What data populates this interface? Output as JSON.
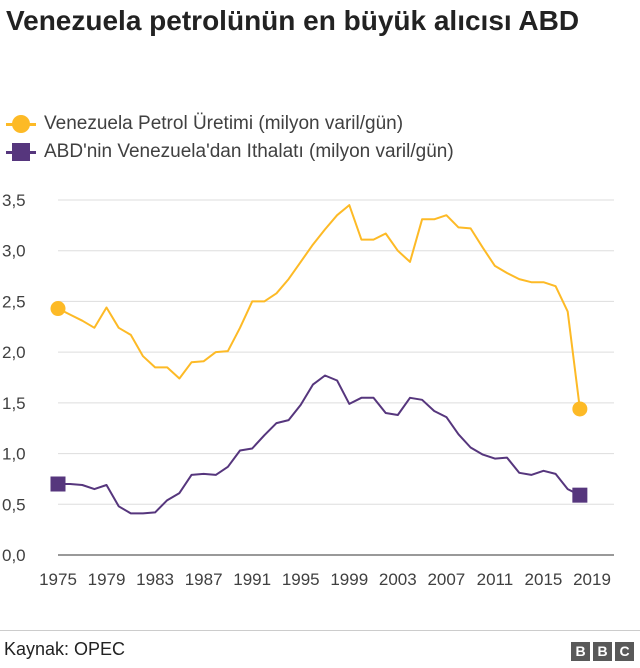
{
  "title": "Venezuela petrolünün en büyük alıcısı ABD",
  "legend": [
    {
      "label": "Venezuela Petrol Üretimi (milyon varil/gün)",
      "color": "#FDBA26",
      "marker": "circle"
    },
    {
      "label": "ABD'nin Venezuela'dan Ithalatı (milyon varil/gün)",
      "color": "#56367D",
      "marker": "square"
    }
  ],
  "chart_data": {
    "type": "line",
    "ylim": [
      0,
      3.5
    ],
    "yticks": [
      0.0,
      0.5,
      1.0,
      1.5,
      2.0,
      2.5,
      3.0,
      3.5
    ],
    "ytick_labels": [
      "0,0",
      "0,5",
      "1,0",
      "1,5",
      "2,0",
      "2,5",
      "3,0",
      "3,5"
    ],
    "xlim": [
      1975,
      2019
    ],
    "xtick_labels": [
      "1975",
      "1979",
      "1983",
      "1987",
      "1991",
      "1995",
      "1999",
      "2003",
      "2007",
      "2011",
      "2015",
      "2019"
    ],
    "grid": true,
    "legend_position": "top-left",
    "x": [
      1975,
      1976,
      1977,
      1978,
      1979,
      1980,
      1981,
      1982,
      1983,
      1984,
      1985,
      1986,
      1987,
      1988,
      1989,
      1990,
      1991,
      1992,
      1993,
      1994,
      1995,
      1996,
      1997,
      1998,
      1999,
      2000,
      2001,
      2002,
      2003,
      2004,
      2005,
      2006,
      2007,
      2008,
      2009,
      2010,
      2011,
      2012,
      2013,
      2014,
      2015,
      2016,
      2017,
      2018
    ],
    "series": [
      {
        "name": "Venezuela Petrol Üretimi (milyon varil/gün)",
        "color": "#FDBA26",
        "values": [
          2.43,
          2.37,
          2.31,
          2.24,
          2.44,
          2.24,
          2.17,
          1.96,
          1.85,
          1.85,
          1.74,
          1.9,
          1.91,
          2.0,
          2.01,
          2.24,
          2.5,
          2.5,
          2.58,
          2.72,
          2.89,
          3.06,
          3.21,
          3.35,
          3.45,
          3.11,
          3.11,
          3.17,
          3.0,
          2.89,
          3.31,
          3.31,
          3.35,
          3.23,
          3.22,
          3.03,
          2.85,
          2.78,
          2.72,
          2.69,
          2.69,
          2.65,
          2.4,
          1.44
        ]
      },
      {
        "name": "ABD'nin Venezuela'dan Ithalatı (milyon varil/gün)",
        "color": "#56367D",
        "values": [
          0.7,
          0.7,
          0.69,
          0.65,
          0.69,
          0.48,
          0.41,
          0.41,
          0.42,
          0.54,
          0.61,
          0.79,
          0.8,
          0.79,
          0.87,
          1.03,
          1.05,
          1.18,
          1.3,
          1.33,
          1.48,
          1.68,
          1.77,
          1.72,
          1.49,
          1.55,
          1.55,
          1.4,
          1.38,
          1.55,
          1.53,
          1.42,
          1.36,
          1.19,
          1.06,
          0.99,
          0.95,
          0.96,
          0.81,
          0.79,
          0.83,
          0.8,
          0.65,
          0.59
        ]
      }
    ]
  },
  "footer": {
    "source": "Kaynak: OPEC",
    "logo_letters": [
      "B",
      "B",
      "C"
    ]
  }
}
